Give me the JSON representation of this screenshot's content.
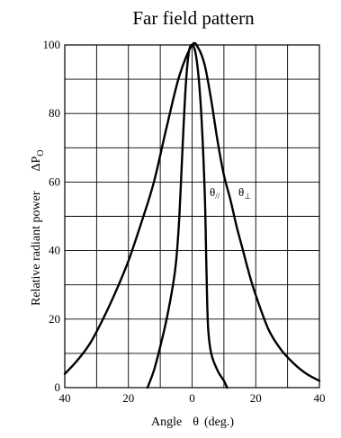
{
  "chart_data": {
    "type": "line",
    "title": "Far field pattern",
    "xlabel": "Angle",
    "xlabel_symbol": "θ",
    "xlabel_unit": "(deg.)",
    "ylabel": "Relative radiant power",
    "ylabel_symbol": "ΔP",
    "ylabel_symbol_sub": "O",
    "xlim": [
      -40,
      40
    ],
    "ylim": [
      0,
      100
    ],
    "x_ticks": [
      -40,
      -20,
      0,
      20,
      40
    ],
    "x_tick_labels": [
      "40",
      "20",
      "0",
      "20",
      "40"
    ],
    "y_ticks": [
      0,
      20,
      40,
      60,
      80,
      100
    ],
    "y_tick_labels": [
      "0",
      "20",
      "40",
      "60",
      "80",
      "100"
    ],
    "grid": true,
    "series": [
      {
        "name": "θ//",
        "label_base": "θ",
        "label_sub": "//",
        "points": [
          [
            -14,
            0
          ],
          [
            -12,
            5
          ],
          [
            -10,
            12
          ],
          [
            -8,
            20
          ],
          [
            -6,
            30
          ],
          [
            -5,
            37
          ],
          [
            -4,
            50
          ],
          [
            -3,
            70
          ],
          [
            -2,
            88
          ],
          [
            -1,
            98
          ],
          [
            0,
            100
          ],
          [
            1,
            98
          ],
          [
            2,
            91
          ],
          [
            3,
            78
          ],
          [
            4,
            56
          ],
          [
            4.5,
            35
          ],
          [
            5,
            18
          ],
          [
            6,
            10
          ],
          [
            8,
            5
          ],
          [
            10,
            2
          ],
          [
            11,
            0
          ]
        ]
      },
      {
        "name": "θ⊥",
        "label_base": "θ",
        "label_sub": "⊥",
        "points": [
          [
            -40,
            4
          ],
          [
            -36,
            8
          ],
          [
            -32,
            13
          ],
          [
            -28,
            20
          ],
          [
            -24,
            28
          ],
          [
            -20,
            37
          ],
          [
            -16,
            48
          ],
          [
            -12,
            60
          ],
          [
            -8,
            76
          ],
          [
            -4,
            91
          ],
          [
            0,
            100
          ],
          [
            2,
            99
          ],
          [
            4,
            94
          ],
          [
            6,
            84
          ],
          [
            8,
            72
          ],
          [
            10,
            62
          ],
          [
            12,
            55
          ],
          [
            14,
            47
          ],
          [
            16,
            40
          ],
          [
            18,
            33
          ],
          [
            20,
            27
          ],
          [
            24,
            17
          ],
          [
            28,
            11
          ],
          [
            32,
            7
          ],
          [
            36,
            4
          ],
          [
            40,
            2
          ]
        ]
      }
    ]
  }
}
